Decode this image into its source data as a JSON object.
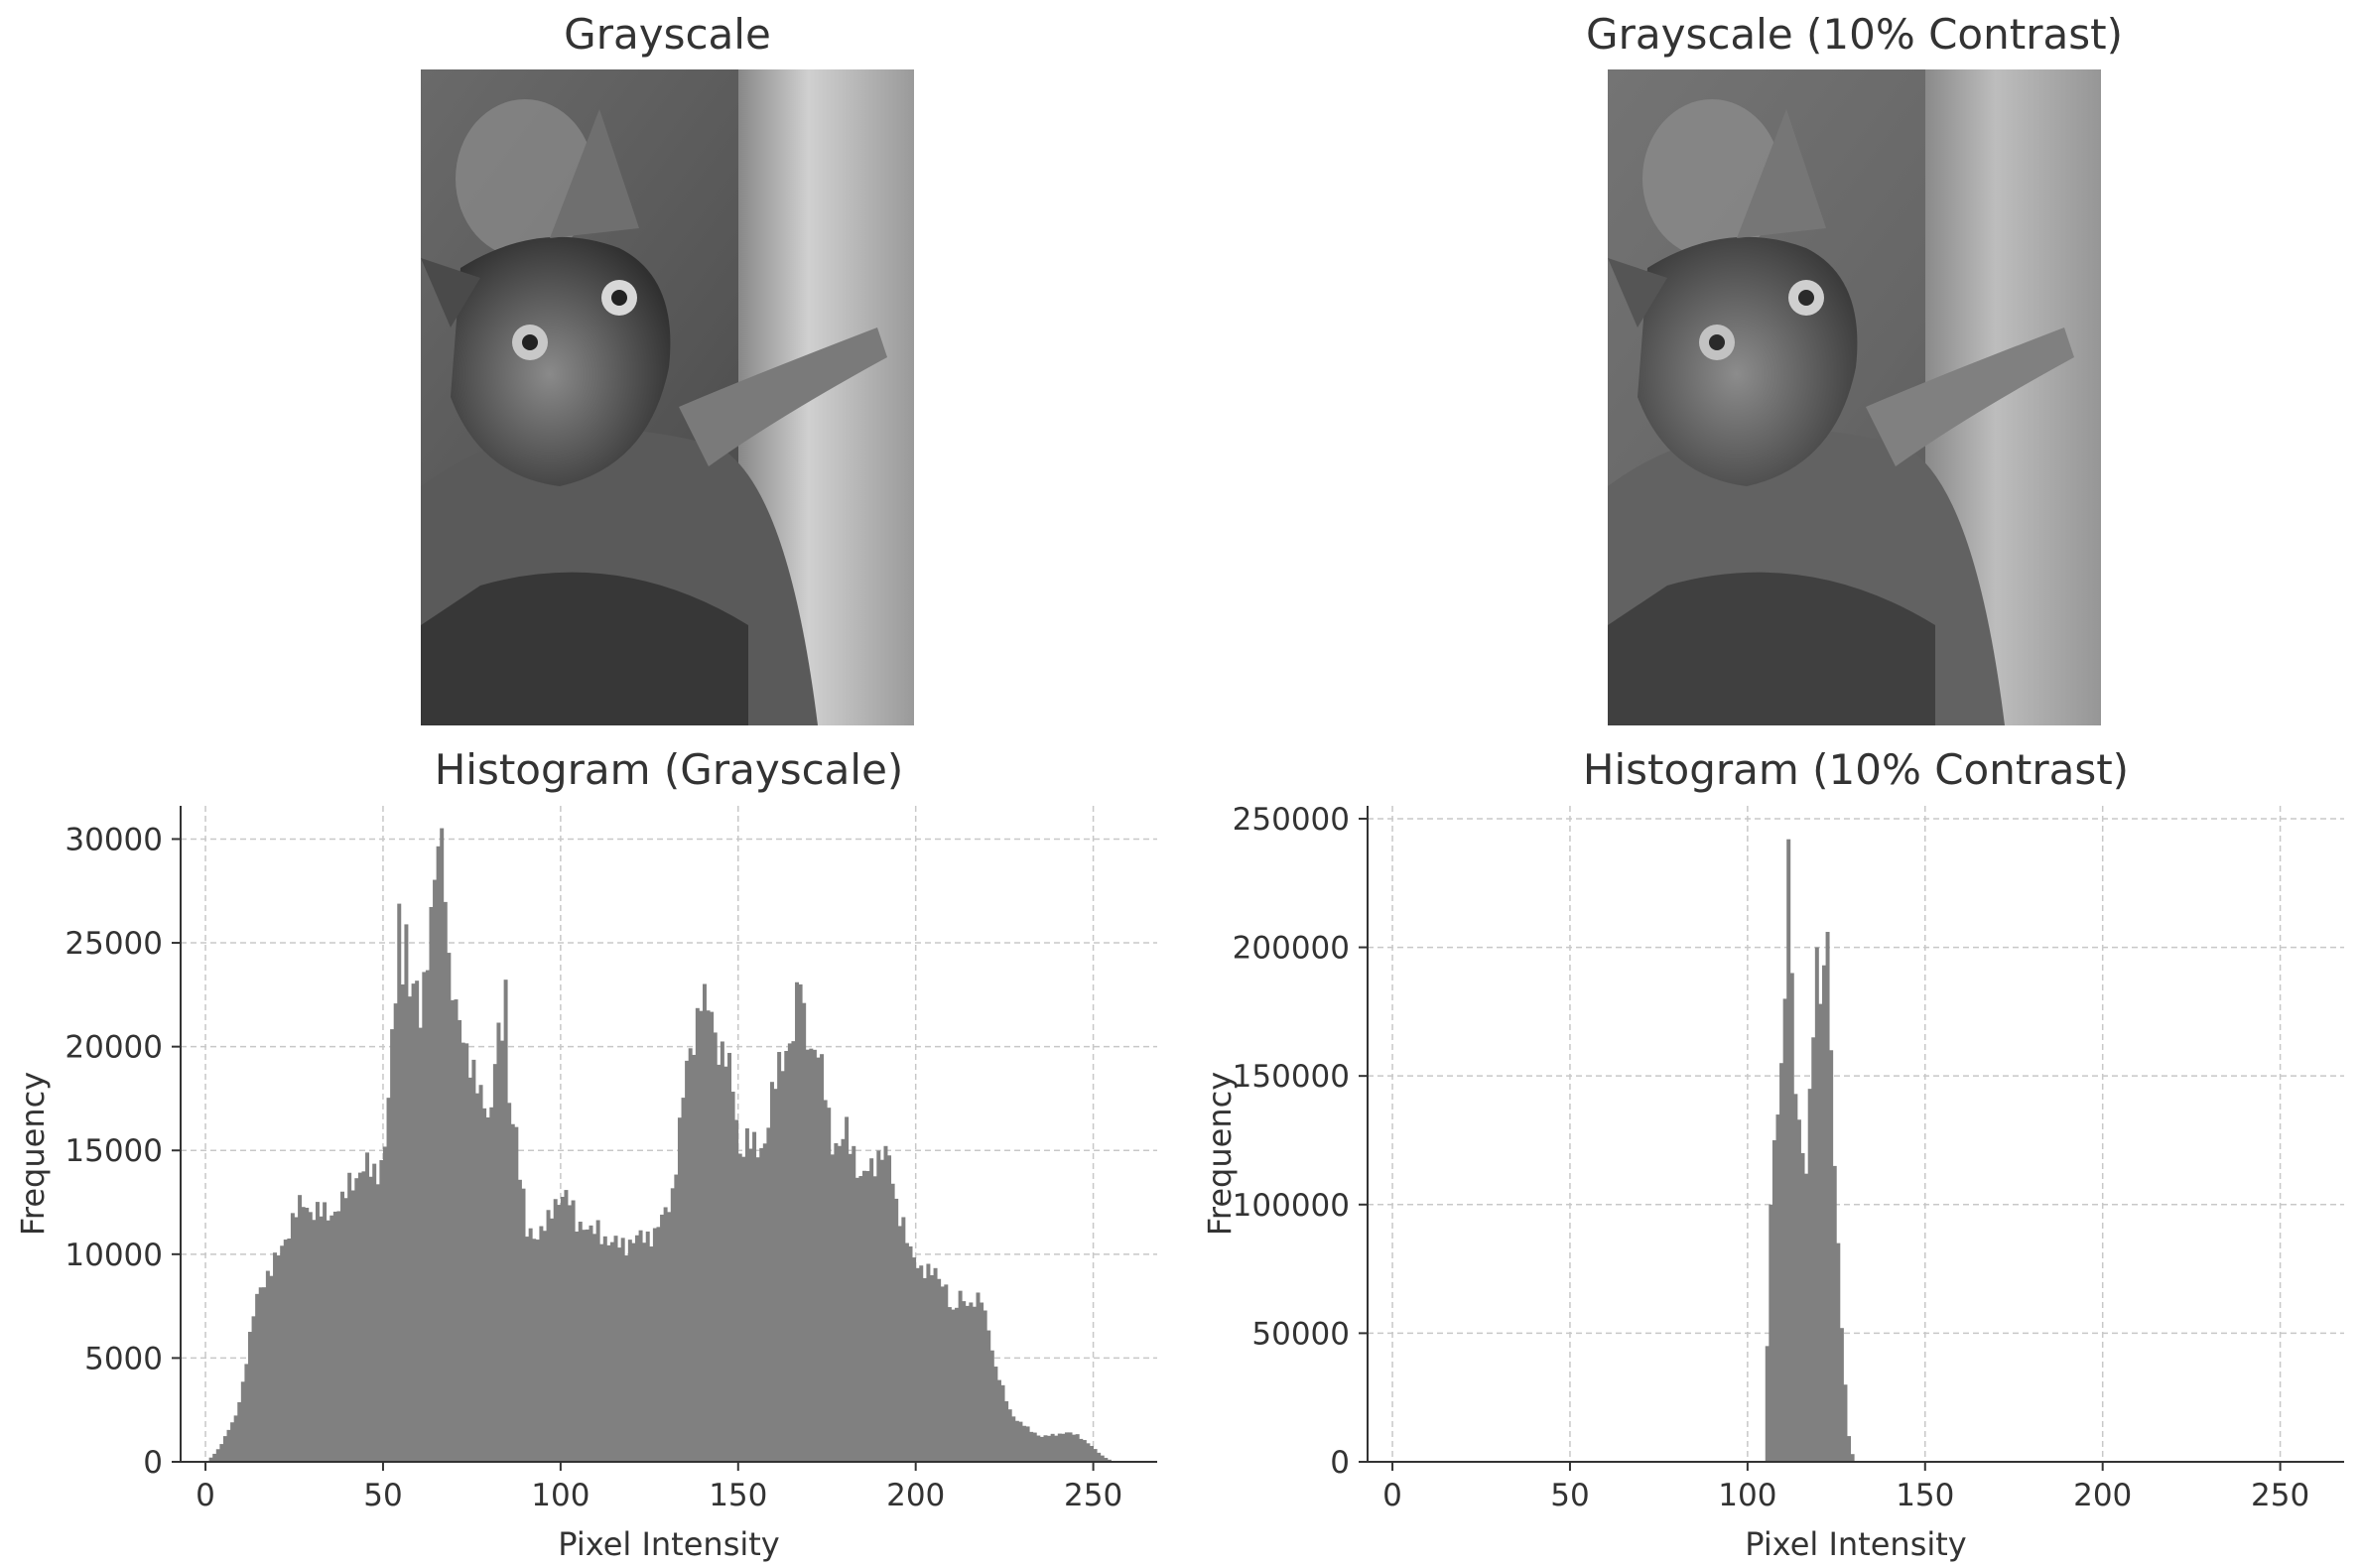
{
  "panels": {
    "image_left_title": "Grayscale",
    "image_right_title": "Grayscale (10% Contrast)",
    "hist_left_title": "Histogram (Grayscale)",
    "hist_right_title": "Histogram (10% Contrast)"
  },
  "chart_data": [
    {
      "type": "bar",
      "title": "Histogram (Grayscale)",
      "xlabel": "Pixel Intensity",
      "ylabel": "Frequency",
      "xlim": [
        -7,
        268
      ],
      "ylim": [
        0,
        31600
      ],
      "xticks": [
        0,
        50,
        100,
        150,
        200,
        250
      ],
      "yticks": [
        0,
        5000,
        10000,
        15000,
        20000,
        25000,
        30000
      ],
      "grid": true,
      "bar_color": "#808080",
      "bins": 256,
      "control_points": [
        [
          0,
          0
        ],
        [
          3,
          600
        ],
        [
          5,
          1200
        ],
        [
          8,
          2200
        ],
        [
          10,
          3800
        ],
        [
          12,
          6000
        ],
        [
          14,
          8000
        ],
        [
          16,
          8800
        ],
        [
          18,
          9200
        ],
        [
          20,
          10000
        ],
        [
          22,
          10800
        ],
        [
          25,
          12000
        ],
        [
          27,
          12500
        ],
        [
          30,
          12000
        ],
        [
          35,
          12000
        ],
        [
          38,
          12400
        ],
        [
          40,
          13500
        ],
        [
          43,
          13900
        ],
        [
          45,
          14200
        ],
        [
          48,
          14000
        ],
        [
          50,
          15000
        ],
        [
          52,
          20000
        ],
        [
          53,
          23000
        ],
        [
          54,
          26500
        ],
        [
          55,
          24000
        ],
        [
          56,
          25500
        ],
        [
          57,
          22000
        ],
        [
          58,
          23000
        ],
        [
          60,
          22000
        ],
        [
          62,
          24500
        ],
        [
          64,
          27500
        ],
        [
          65,
          29800
        ],
        [
          66,
          30000
        ],
        [
          67,
          28500
        ],
        [
          68,
          24000
        ],
        [
          70,
          21500
        ],
        [
          72,
          20500
        ],
        [
          74,
          19500
        ],
        [
          76,
          18000
        ],
        [
          78,
          17000
        ],
        [
          80,
          17000
        ],
        [
          81,
          20000
        ],
        [
          83,
          20500
        ],
        [
          84,
          22500
        ],
        [
          85,
          17500
        ],
        [
          87,
          16000
        ],
        [
          88,
          14000
        ],
        [
          90,
          11000
        ],
        [
          93,
          11000
        ],
        [
          96,
          11500
        ],
        [
          98,
          12500
        ],
        [
          100,
          13000
        ],
        [
          102,
          12500
        ],
        [
          104,
          11500
        ],
        [
          106,
          11500
        ],
        [
          108,
          11000
        ],
        [
          110,
          11200
        ],
        [
          112,
          10800
        ],
        [
          114,
          10500
        ],
        [
          118,
          10500
        ],
        [
          122,
          10800
        ],
        [
          126,
          11000
        ],
        [
          129,
          12000
        ],
        [
          131,
          13000
        ],
        [
          133,
          16000
        ],
        [
          135,
          19000
        ],
        [
          137,
          20500
        ],
        [
          139,
          22500
        ],
        [
          140,
          22000
        ],
        [
          142,
          21500
        ],
        [
          144,
          20000
        ],
        [
          146,
          19500
        ],
        [
          148,
          18000
        ],
        [
          150,
          15000
        ],
        [
          152,
          15500
        ],
        [
          155,
          15000
        ],
        [
          157,
          15500
        ],
        [
          159,
          17500
        ],
        [
          161,
          19000
        ],
        [
          163,
          20000
        ],
        [
          165,
          20500
        ],
        [
          167,
          23500
        ],
        [
          168,
          21500
        ],
        [
          170,
          20000
        ],
        [
          172,
          19500
        ],
        [
          174,
          18000
        ],
        [
          176,
          15500
        ],
        [
          178,
          15000
        ],
        [
          180,
          16000
        ],
        [
          182,
          15000
        ],
        [
          184,
          13500
        ],
        [
          186,
          14000
        ],
        [
          188,
          14500
        ],
        [
          190,
          15000
        ],
        [
          192,
          14500
        ],
        [
          194,
          12500
        ],
        [
          196,
          11500
        ],
        [
          198,
          10000
        ],
        [
          200,
          9500
        ],
        [
          205,
          9000
        ],
        [
          208,
          8500
        ],
        [
          210,
          7000
        ],
        [
          212,
          8000
        ],
        [
          215,
          7600
        ],
        [
          218,
          7800
        ],
        [
          220,
          6500
        ],
        [
          222,
          4500
        ],
        [
          224,
          3500
        ],
        [
          226,
          2500
        ],
        [
          228,
          2000
        ],
        [
          232,
          1500
        ],
        [
          235,
          1200
        ],
        [
          238,
          1300
        ],
        [
          242,
          1400
        ],
        [
          245,
          1300
        ],
        [
          248,
          900
        ],
        [
          250,
          600
        ],
        [
          252,
          300
        ],
        [
          254,
          100
        ],
        [
          255,
          0
        ]
      ]
    },
    {
      "type": "bar",
      "title": "Histogram (10% Contrast)",
      "xlabel": "Pixel Intensity",
      "ylabel": "Frequency",
      "xlim": [
        -7,
        268
      ],
      "ylim": [
        0,
        255000
      ],
      "xticks": [
        0,
        50,
        100,
        150,
        200,
        250
      ],
      "yticks": [
        0,
        50000,
        100000,
        150000,
        200000,
        250000
      ],
      "grid": true,
      "bar_color": "#808080",
      "bins": [
        [
          105,
          45000
        ],
        [
          106,
          100000
        ],
        [
          107,
          125000
        ],
        [
          108,
          135000
        ],
        [
          109,
          155000
        ],
        [
          110,
          180000
        ],
        [
          111,
          242000
        ],
        [
          112,
          190000
        ],
        [
          113,
          143000
        ],
        [
          114,
          133000
        ],
        [
          115,
          120000
        ],
        [
          116,
          112000
        ],
        [
          117,
          145000
        ],
        [
          118,
          165000
        ],
        [
          119,
          200000
        ],
        [
          120,
          178000
        ],
        [
          121,
          193000
        ],
        [
          122,
          206000
        ],
        [
          123,
          160000
        ],
        [
          124,
          115000
        ],
        [
          125,
          85000
        ],
        [
          126,
          52000
        ],
        [
          127,
          30000
        ],
        [
          128,
          10000
        ],
        [
          129,
          3000
        ]
      ]
    }
  ]
}
